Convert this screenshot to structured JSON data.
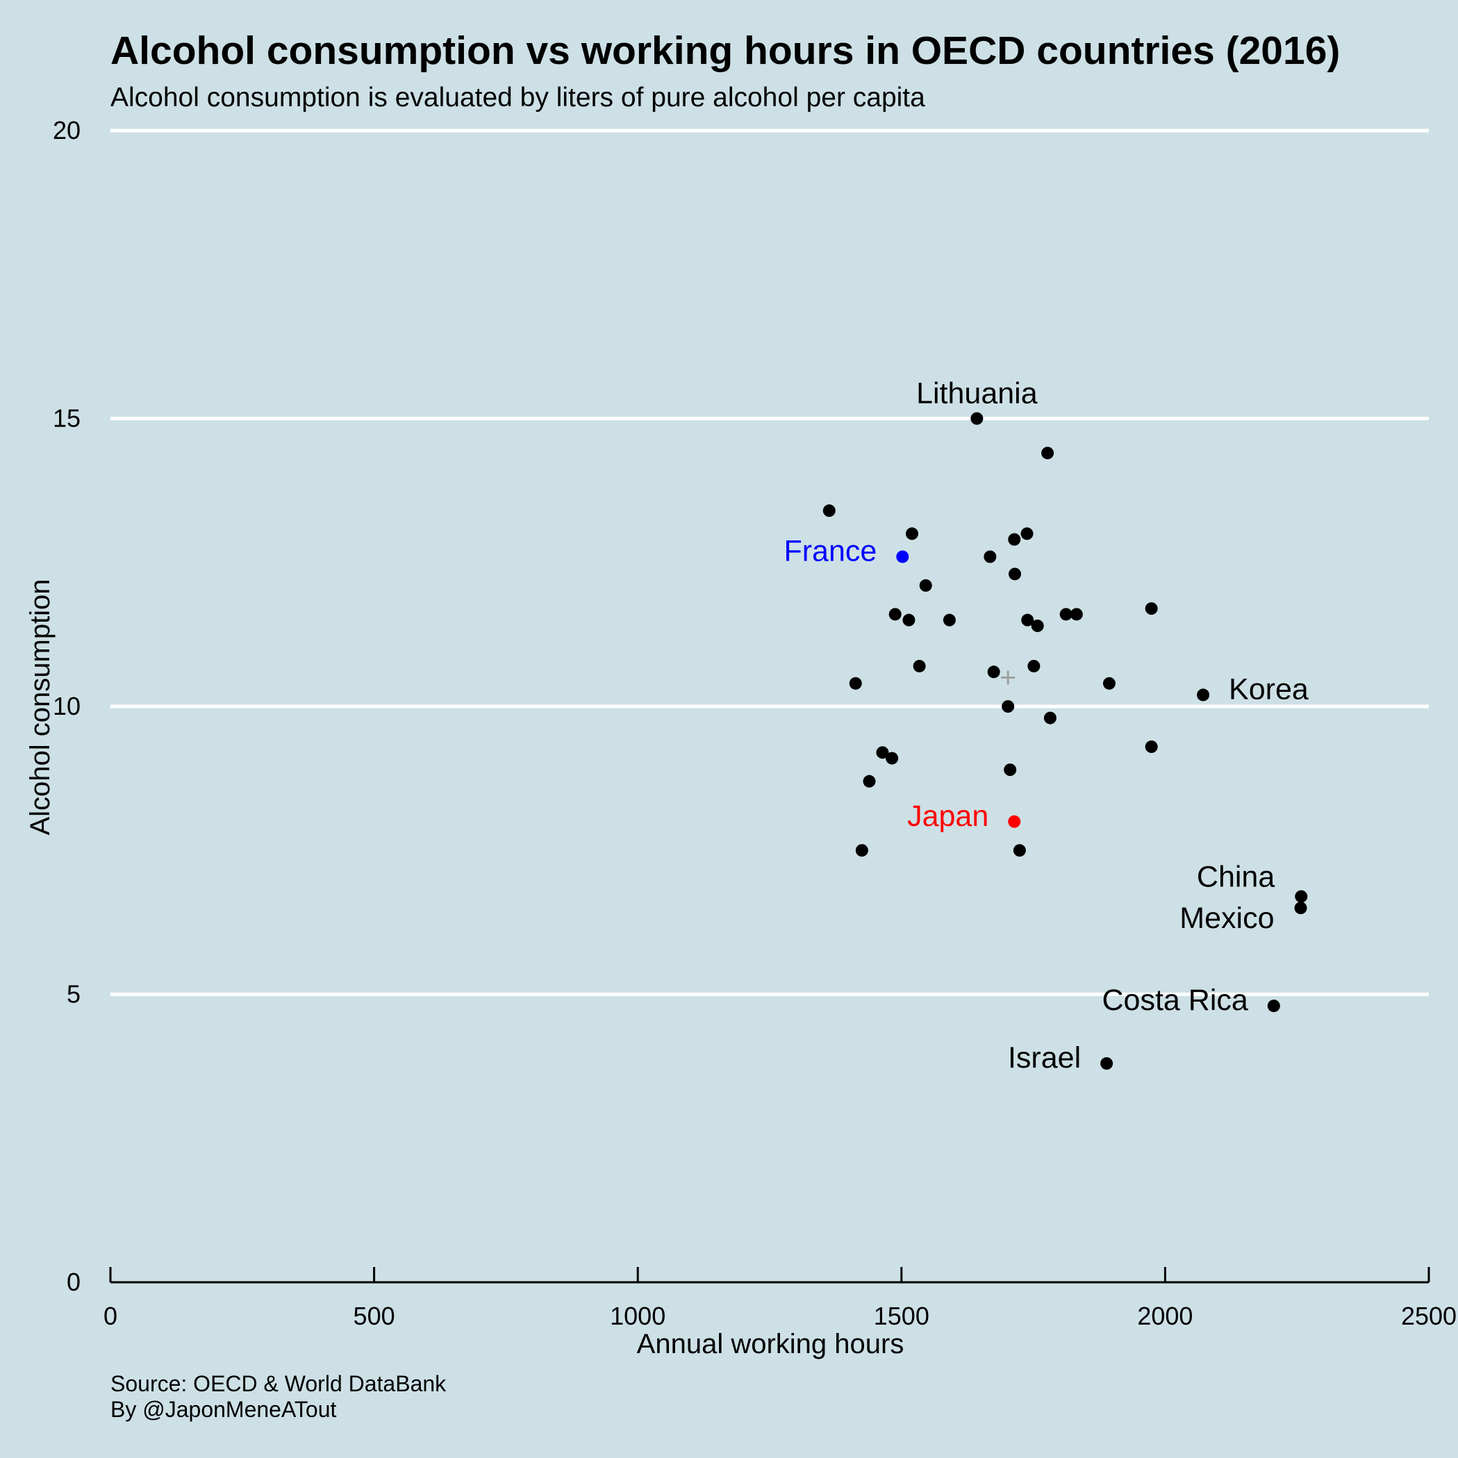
{
  "title": "Alcohol consumption vs working hours in OECD countries (2016)",
  "subtitle": "Alcohol consumption is evaluated by liters of pure alcohol per capita",
  "caption": [
    "Source: OECD & World DataBank",
    "By @JaponMeneATout"
  ],
  "colors": {
    "background": "#cde0e6",
    "grid": "#ffffff",
    "point": "#000000",
    "france": "#0000ff",
    "japan": "#ff0000",
    "mean_marker": "#a0a0a0"
  },
  "chart_data": {
    "type": "scatter",
    "title": "Alcohol consumption vs working hours in OECD countries (2016)",
    "subtitle": "Alcohol consumption is evaluated by liters of pure alcohol per capita",
    "xlabel": "Annual working hours",
    "ylabel": "Alcohol consumption",
    "xlim": [
      0,
      2500
    ],
    "ylim": [
      0,
      20
    ],
    "xticks": [
      0,
      500,
      1000,
      1500,
      2000,
      2500
    ],
    "yticks": [
      0,
      5,
      10,
      15,
      20
    ],
    "grid": "horizontal",
    "points": [
      {
        "x": 1643,
        "y": 15.0,
        "label": "Lithuania",
        "highlight": "none",
        "label_pos": "above"
      },
      {
        "x": 1777,
        "y": 14.4,
        "label": "",
        "highlight": "none"
      },
      {
        "x": 1363,
        "y": 13.4,
        "label": "",
        "highlight": "none"
      },
      {
        "x": 1520,
        "y": 13.0,
        "label": "",
        "highlight": "none"
      },
      {
        "x": 1738,
        "y": 13.0,
        "label": "",
        "highlight": "none"
      },
      {
        "x": 1714,
        "y": 12.9,
        "label": "",
        "highlight": "none"
      },
      {
        "x": 1502,
        "y": 12.6,
        "label": "France",
        "highlight": "france",
        "label_pos": "left"
      },
      {
        "x": 1668,
        "y": 12.6,
        "label": "",
        "highlight": "none"
      },
      {
        "x": 1715,
        "y": 12.3,
        "label": "",
        "highlight": "none"
      },
      {
        "x": 1546,
        "y": 12.1,
        "label": "",
        "highlight": "none"
      },
      {
        "x": 1974,
        "y": 11.7,
        "label": "",
        "highlight": "none"
      },
      {
        "x": 1488,
        "y": 11.6,
        "label": "",
        "highlight": "none"
      },
      {
        "x": 1812,
        "y": 11.6,
        "label": "",
        "highlight": "none"
      },
      {
        "x": 1832,
        "y": 11.6,
        "label": "",
        "highlight": "none"
      },
      {
        "x": 1514,
        "y": 11.5,
        "label": "",
        "highlight": "none"
      },
      {
        "x": 1591,
        "y": 11.5,
        "label": "",
        "highlight": "none"
      },
      {
        "x": 1739,
        "y": 11.5,
        "label": "",
        "highlight": "none"
      },
      {
        "x": 1758,
        "y": 11.4,
        "label": "",
        "highlight": "none"
      },
      {
        "x": 1534,
        "y": 10.7,
        "label": "",
        "highlight": "none"
      },
      {
        "x": 1751,
        "y": 10.7,
        "label": "",
        "highlight": "none"
      },
      {
        "x": 1675,
        "y": 10.6,
        "label": "",
        "highlight": "none"
      },
      {
        "x": 1413,
        "y": 10.4,
        "label": "",
        "highlight": "none"
      },
      {
        "x": 1894,
        "y": 10.4,
        "label": "",
        "highlight": "none"
      },
      {
        "x": 2072,
        "y": 10.2,
        "label": "Korea",
        "highlight": "none",
        "label_pos": "right"
      },
      {
        "x": 1702,
        "y": 10.0,
        "label": "",
        "highlight": "none"
      },
      {
        "x": 1782,
        "y": 9.8,
        "label": "",
        "highlight": "none"
      },
      {
        "x": 1974,
        "y": 9.3,
        "label": "",
        "highlight": "none"
      },
      {
        "x": 1464,
        "y": 9.2,
        "label": "",
        "highlight": "none"
      },
      {
        "x": 1482,
        "y": 9.1,
        "label": "",
        "highlight": "none"
      },
      {
        "x": 1706,
        "y": 8.9,
        "label": "",
        "highlight": "none"
      },
      {
        "x": 1439,
        "y": 8.7,
        "label": "",
        "highlight": "none"
      },
      {
        "x": 1714,
        "y": 8.0,
        "label": "Japan",
        "highlight": "japan",
        "label_pos": "left"
      },
      {
        "x": 1425,
        "y": 7.5,
        "label": "",
        "highlight": "none"
      },
      {
        "x": 1724,
        "y": 7.5,
        "label": "",
        "highlight": "none"
      },
      {
        "x": 2258,
        "y": 6.7,
        "label": "China",
        "highlight": "none",
        "label_pos": "upper-left"
      },
      {
        "x": 2257,
        "y": 6.5,
        "label": "Mexico",
        "highlight": "none",
        "label_pos": "lower-left"
      },
      {
        "x": 2206,
        "y": 4.8,
        "label": "Costa Rica",
        "highlight": "none",
        "label_pos": "left"
      },
      {
        "x": 1889,
        "y": 3.8,
        "label": "Israel",
        "highlight": "none",
        "label_pos": "left"
      }
    ],
    "mean_point": {
      "x": 1702,
      "y": 10.5,
      "marker": "plus"
    }
  }
}
